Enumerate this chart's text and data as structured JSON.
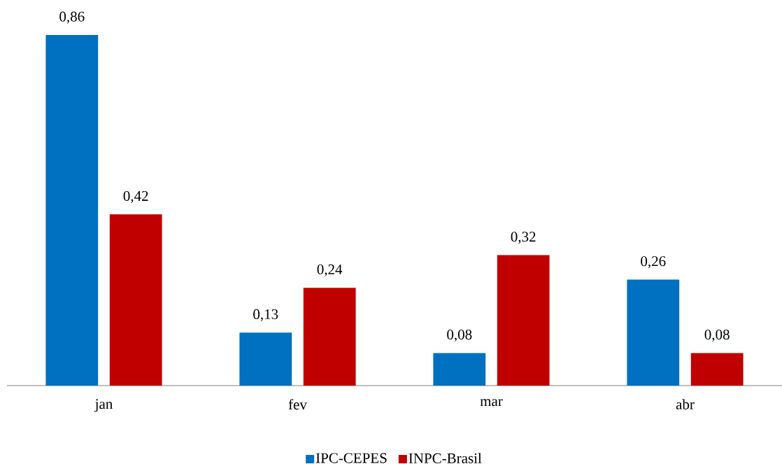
{
  "chart_data": {
    "type": "bar",
    "categories": [
      "jan",
      "fev",
      "mar",
      "abr"
    ],
    "series": [
      {
        "name": "IPC-CEPES",
        "color": "#0070c0",
        "values": [
          0.86,
          0.13,
          0.08,
          0.26
        ],
        "value_labels": [
          "0,86",
          "0,13",
          "0,08",
          "0,26"
        ]
      },
      {
        "name": "INPC-Brasil",
        "color": "#c00000",
        "values": [
          0.42,
          0.24,
          0.32,
          0.08
        ],
        "value_labels": [
          "0,42",
          "0,24",
          "0,32",
          "0,08"
        ]
      }
    ],
    "legend": "bottom"
  }
}
